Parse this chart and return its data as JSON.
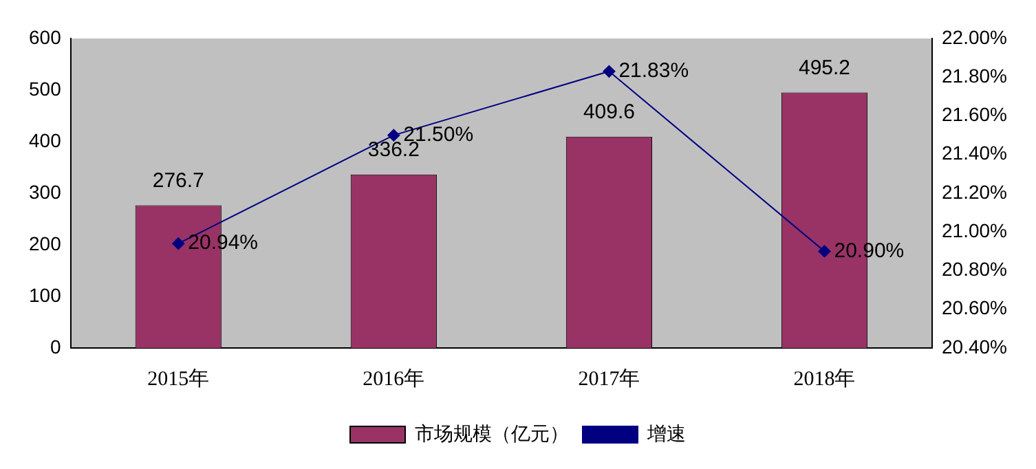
{
  "chart_data": {
    "type": "bar",
    "categories": [
      "2015年",
      "2016年",
      "2017年",
      "2018年"
    ],
    "series": [
      {
        "name": "市场规模（亿元）",
        "color": "#993366",
        "values": [
          276.7,
          336.2,
          409.6,
          495.2
        ],
        "value_labels": [
          "276.7",
          "336.2",
          "409.6",
          "495.2"
        ]
      },
      {
        "name": "增速",
        "type": "line",
        "axis": "y2",
        "color": "#000080",
        "values": [
          20.94,
          21.5,
          21.83,
          20.9
        ],
        "value_labels": [
          "20.94%",
          "21.50%",
          "21.83%",
          "20.90%"
        ]
      }
    ],
    "ylim": [
      0,
      600
    ],
    "yticks": [
      0,
      100,
      200,
      300,
      400,
      500,
      600
    ],
    "y2lim": [
      20.4,
      22.0
    ],
    "y2ticks": [
      {
        "value": 20.4,
        "label": "20.40%"
      },
      {
        "value": 20.6,
        "label": "20.60%"
      },
      {
        "value": 20.8,
        "label": "20.80%"
      },
      {
        "value": 21.0,
        "label": "21.00%"
      },
      {
        "value": 21.2,
        "label": "21.20%"
      },
      {
        "value": 21.4,
        "label": "21.40%"
      },
      {
        "value": 21.6,
        "label": "21.60%"
      },
      {
        "value": 21.8,
        "label": "21.80%"
      },
      {
        "value": 22.0,
        "label": "22.00%"
      }
    ],
    "legend": "bottom",
    "marker": "diamond"
  }
}
